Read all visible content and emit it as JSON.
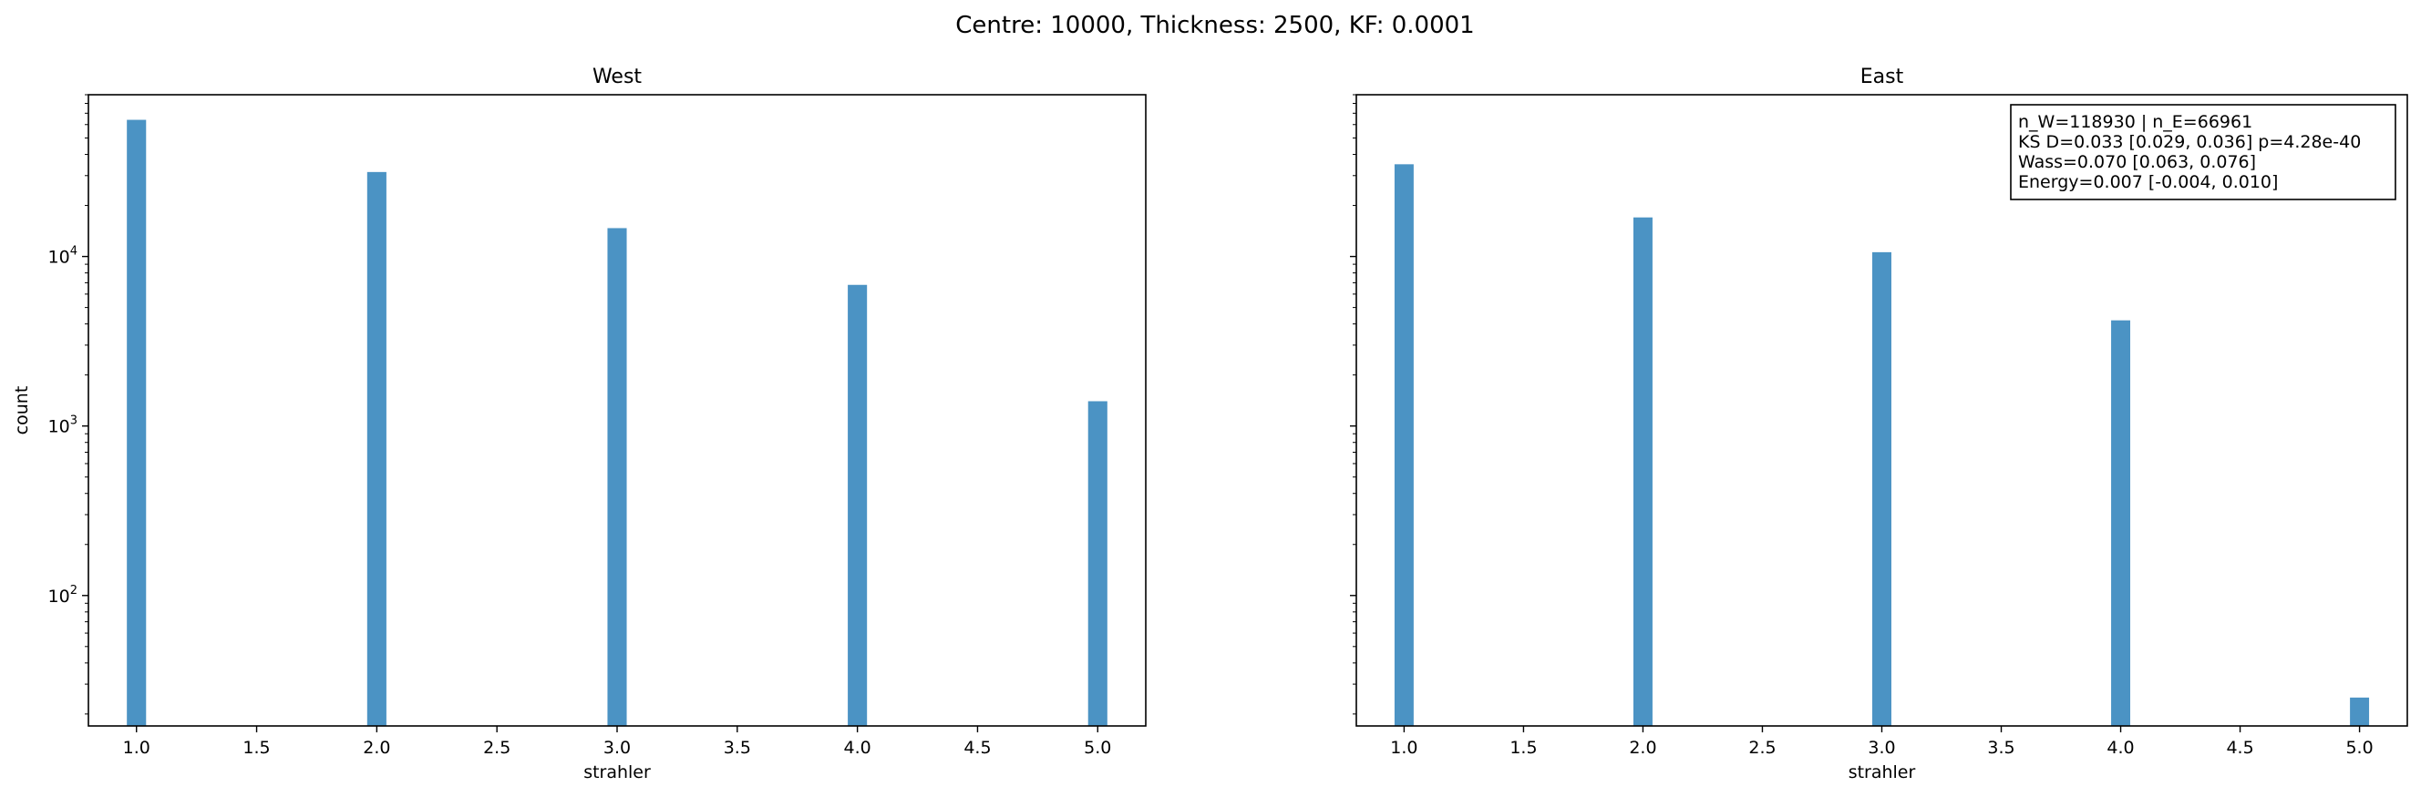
{
  "figure": {
    "suptitle": "Centre: 10000, Thickness: 2500, KF: 0.0001"
  },
  "colors": {
    "bar": "#4b93c4",
    "axis": "#000000",
    "background": "#ffffff"
  },
  "chart_data": [
    {
      "type": "bar",
      "title": "West",
      "xlabel": "strahler",
      "ylabel": "count",
      "yscale": "log",
      "xlim": [
        0.8,
        5.2
      ],
      "ylim": [
        17,
        90000
      ],
      "xticks": [
        "1.0",
        "1.5",
        "2.0",
        "2.5",
        "3.0",
        "3.5",
        "4.0",
        "4.5",
        "5.0"
      ],
      "yticks": [
        {
          "value": 100,
          "base": "10",
          "exp": "2"
        },
        {
          "value": 1000,
          "base": "10",
          "exp": "3"
        },
        {
          "value": 10000,
          "base": "10",
          "exp": "4"
        }
      ],
      "bin_width": 0.08,
      "x": [
        1,
        2,
        3,
        4,
        5
      ],
      "values": [
        64000,
        31500,
        14700,
        6800,
        1400
      ],
      "annotation": []
    },
    {
      "type": "bar",
      "title": "East",
      "xlabel": "strahler",
      "ylabel": "",
      "yscale": "log",
      "xlim": [
        0.8,
        5.2
      ],
      "ylim": [
        17,
        90000
      ],
      "xticks": [
        "1.0",
        "1.5",
        "2.0",
        "2.5",
        "3.0",
        "3.5",
        "4.0",
        "4.5",
        "5.0"
      ],
      "yticks": [],
      "bin_width": 0.08,
      "x": [
        1,
        2,
        3,
        4,
        5
      ],
      "values": [
        35000,
        17000,
        10600,
        4200,
        25
      ],
      "annotation": [
        "n_W=118930 | n_E=66961",
        "KS D=0.033 [0.029, 0.036]  p=4.28e-40",
        "Wass=0.070 [0.063, 0.076]",
        "Energy=0.007 [-0.004, 0.010]"
      ]
    }
  ]
}
